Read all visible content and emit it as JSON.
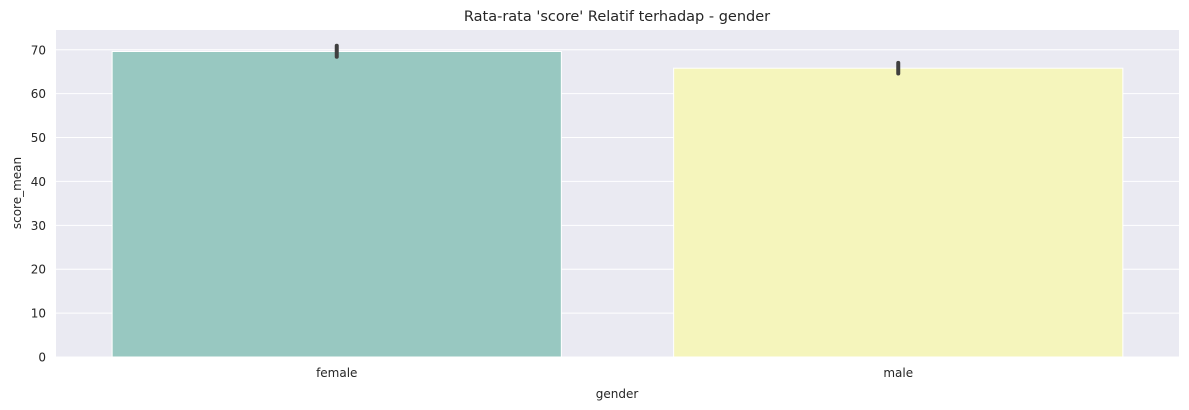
{
  "chart_data": {
    "type": "bar",
    "title": "Rata-rata 'score' Relatif terhadap - gender",
    "xlabel": "gender",
    "ylabel": "score_mean",
    "categories": [
      "female",
      "male"
    ],
    "values": [
      69.6,
      65.8
    ],
    "error_bars": [
      [
        68.4,
        70.9
      ],
      [
        64.6,
        67.0
      ]
    ],
    "colors": [
      "#98c8c1",
      "#f5f5bc"
    ],
    "ylim": [
      0,
      74.5
    ],
    "yticks": [
      0,
      10,
      20,
      30,
      40,
      50,
      60,
      70
    ],
    "grid": true,
    "background": "#eaeaf2",
    "gridline_color": "#ffffff",
    "errorbar_color": "#3f3f3f"
  }
}
